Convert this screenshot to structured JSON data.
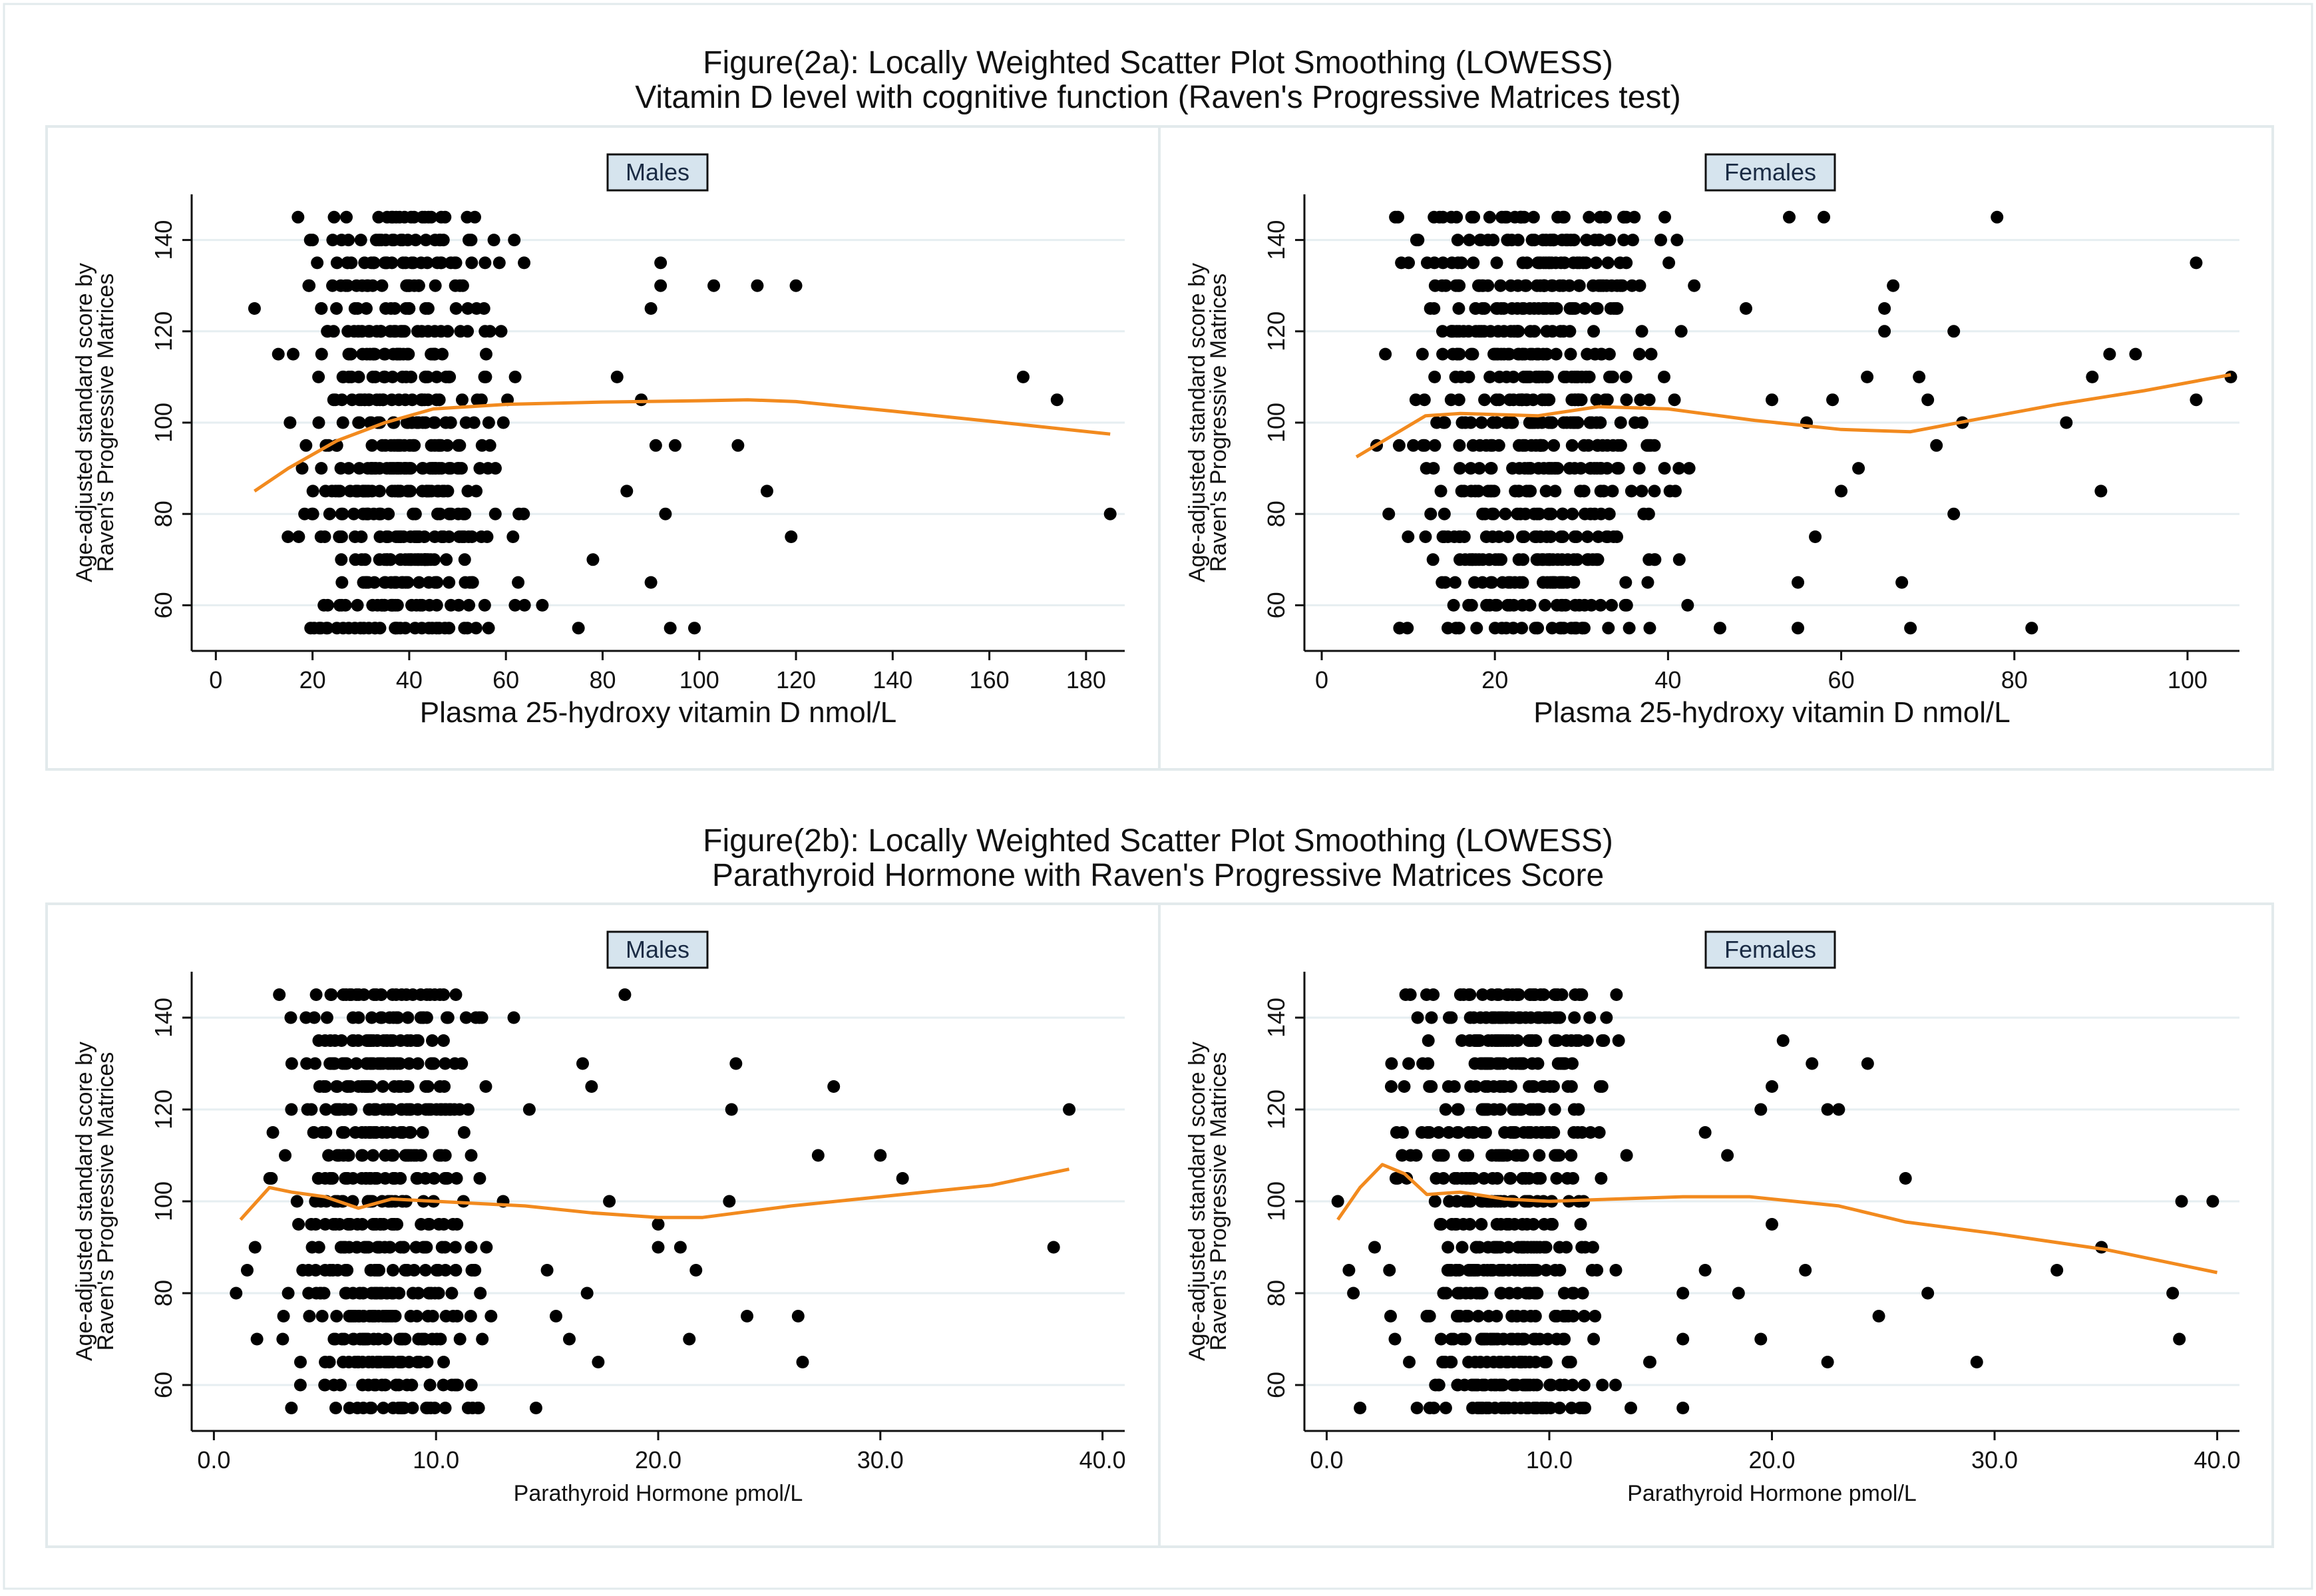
{
  "figures": [
    {
      "title_line1": "Figure(2a): Locally Weighted Scatter Plot Smoothing (LOWESS)",
      "title_line2": "Vitamin D level with cognitive function (Raven's Progressive Matrices test)"
    },
    {
      "title_line1": "Figure(2b): Locally Weighted Scatter Plot Smoothing (LOWESS)",
      "title_line2": "Parathyroid Hormone with Raven's Progressive Matrices Score"
    }
  ],
  "colors": {
    "points": "#000000",
    "lowess": "#f28a1e",
    "grid": "#e6eef1",
    "badge_bg": "#d6e4ee",
    "panel_border": "#e2eaec"
  },
  "chart_data": [
    {
      "type": "scatter",
      "panel": "Males",
      "figure": "2a",
      "xlabel": "Plasma 25-hydroxy vitamin D nmol/L",
      "ylabel": [
        "Age-adjusted standard score by",
        "Raven's Progressive Matrices"
      ],
      "xlim": [
        -5,
        188
      ],
      "ylim": [
        50,
        150
      ],
      "xticks": [
        0,
        20,
        40,
        60,
        80,
        100,
        120,
        140,
        160,
        180
      ],
      "xtick_labels": [
        "0",
        "20",
        "40",
        "60",
        "80",
        "100",
        "120",
        "140",
        "160",
        "180"
      ],
      "yticks": [
        60,
        80,
        100,
        120,
        140
      ],
      "ytick_labels": [
        "60",
        "80",
        "100",
        "120",
        "140"
      ],
      "grid": true,
      "lowess": [
        [
          8,
          85
        ],
        [
          15,
          90
        ],
        [
          25,
          96
        ],
        [
          35,
          100
        ],
        [
          45,
          103
        ],
        [
          60,
          104
        ],
        [
          80,
          104.5
        ],
        [
          100,
          104.8
        ],
        [
          110,
          105
        ],
        [
          120,
          104.6
        ],
        [
          140,
          102.5
        ],
        [
          160,
          100.3
        ],
        [
          185,
          97.5
        ]
      ],
      "outliers": [
        [
          8,
          125
        ],
        [
          17,
          145
        ],
        [
          20,
          140
        ],
        [
          92,
          135
        ],
        [
          92,
          130
        ],
        [
          103,
          130
        ],
        [
          112,
          130
        ],
        [
          120,
          130
        ],
        [
          90,
          125
        ],
        [
          88,
          105
        ],
        [
          91,
          95
        ],
        [
          95,
          95
        ],
        [
          108,
          95
        ],
        [
          114,
          85
        ],
        [
          119,
          75
        ],
        [
          93,
          80
        ],
        [
          90,
          65
        ],
        [
          94,
          55
        ],
        [
          167,
          110
        ],
        [
          174,
          105
        ],
        [
          185,
          80
        ],
        [
          99,
          55
        ],
        [
          78,
          70
        ],
        [
          85,
          85
        ],
        [
          75,
          55
        ],
        [
          83,
          110
        ]
      ],
      "cluster": {
        "x_range": [
          10,
          68
        ],
        "y_values": [
          55,
          60,
          65,
          70,
          75,
          80,
          85,
          90,
          95,
          100,
          105,
          110,
          115,
          120,
          125,
          130,
          135,
          140,
          145
        ]
      },
      "n_cluster": 560
    },
    {
      "type": "scatter",
      "panel": "Females",
      "figure": "2a",
      "xlabel": "Plasma 25-hydroxy vitamin D nmol/L",
      "ylabel": [
        "Age-adjusted standard score by",
        "Raven's Progressive Matrices"
      ],
      "xlim": [
        -2,
        106
      ],
      "ylim": [
        50,
        150
      ],
      "xticks": [
        0,
        20,
        40,
        60,
        80,
        100
      ],
      "xtick_labels": [
        "0",
        "20",
        "40",
        "60",
        "80",
        "100"
      ],
      "yticks": [
        60,
        80,
        100,
        120,
        140
      ],
      "ytick_labels": [
        "60",
        "80",
        "100",
        "120",
        "140"
      ],
      "grid": true,
      "lowess": [
        [
          4,
          92.5
        ],
        [
          8,
          97
        ],
        [
          12,
          101.5
        ],
        [
          16,
          102
        ],
        [
          25,
          101.5
        ],
        [
          32,
          103.5
        ],
        [
          40,
          103
        ],
        [
          50,
          100.5
        ],
        [
          60,
          98.5
        ],
        [
          68,
          98
        ],
        [
          75,
          100.5
        ],
        [
          85,
          104
        ],
        [
          95,
          107
        ],
        [
          105,
          110.5
        ]
      ],
      "outliers": [
        [
          54,
          145
        ],
        [
          58,
          145
        ],
        [
          78,
          145
        ],
        [
          66,
          130
        ],
        [
          65,
          125
        ],
        [
          65,
          120
        ],
        [
          63,
          110
        ],
        [
          69,
          110
        ],
        [
          70,
          105
        ],
        [
          73,
          120
        ],
        [
          71,
          95
        ],
        [
          73,
          80
        ],
        [
          67,
          65
        ],
        [
          68,
          55
        ],
        [
          82,
          55
        ],
        [
          89,
          110
        ],
        [
          91,
          115
        ],
        [
          94,
          115
        ],
        [
          101,
          135
        ],
        [
          101,
          105
        ],
        [
          105,
          110
        ],
        [
          90,
          85
        ],
        [
          86,
          100
        ],
        [
          74,
          100
        ],
        [
          60,
          85
        ],
        [
          56,
          100
        ],
        [
          59,
          105
        ],
        [
          62,
          90
        ],
        [
          55,
          55
        ],
        [
          57,
          75
        ],
        [
          46,
          55
        ],
        [
          49,
          125
        ],
        [
          52,
          105
        ],
        [
          55,
          65
        ]
      ],
      "cluster": {
        "x_range": [
          4,
          46
        ],
        "y_values": [
          55,
          60,
          65,
          70,
          75,
          80,
          85,
          90,
          95,
          100,
          105,
          110,
          115,
          120,
          125,
          130,
          135,
          140,
          145
        ]
      },
      "n_cluster": 640
    },
    {
      "type": "scatter",
      "panel": "Males",
      "figure": "2b",
      "xlabel": "Parathyroid Hormone pmol/L",
      "ylabel": [
        "Age-adjusted standard score by",
        "Raven's Progressive Matrices"
      ],
      "xlim": [
        -1,
        41
      ],
      "ylim": [
        50,
        150
      ],
      "xticks": [
        0,
        10,
        20,
        30,
        40
      ],
      "xtick_labels": [
        "0.0",
        "10.0",
        "20.0",
        "30.0",
        "40.0"
      ],
      "yticks": [
        60,
        80,
        100,
        120,
        140
      ],
      "ytick_labels": [
        "60",
        "80",
        "100",
        "120",
        "140"
      ],
      "grid": true,
      "lowess": [
        [
          1.2,
          96
        ],
        [
          2.5,
          103
        ],
        [
          3.5,
          102
        ],
        [
          5,
          101
        ],
        [
          6.5,
          98.5
        ],
        [
          8,
          100.5
        ],
        [
          10,
          100
        ],
        [
          14,
          99
        ],
        [
          17,
          97.5
        ],
        [
          20,
          96.5
        ],
        [
          22,
          96.5
        ],
        [
          26,
          99
        ],
        [
          30,
          101
        ],
        [
          35,
          103.5
        ],
        [
          38.5,
          107
        ]
      ],
      "outliers": [
        [
          18.5,
          145
        ],
        [
          16.6,
          130
        ],
        [
          17,
          125
        ],
        [
          14.2,
          120
        ],
        [
          13.5,
          140
        ],
        [
          23.5,
          130
        ],
        [
          23.3,
          120
        ],
        [
          27.9,
          125
        ],
        [
          27.2,
          110
        ],
        [
          30,
          110
        ],
        [
          31,
          105
        ],
        [
          38.5,
          120
        ],
        [
          37.8,
          90
        ],
        [
          23.2,
          100
        ],
        [
          20,
          95
        ],
        [
          21,
          90
        ],
        [
          21.7,
          85
        ],
        [
          20,
          90
        ],
        [
          24,
          75
        ],
        [
          26.3,
          75
        ],
        [
          26.5,
          65
        ],
        [
          21.4,
          70
        ],
        [
          15,
          85
        ],
        [
          15.4,
          75
        ],
        [
          16,
          70
        ],
        [
          17.3,
          65
        ],
        [
          14.5,
          55
        ],
        [
          16.8,
          80
        ],
        [
          1,
          80
        ],
        [
          1.5,
          85
        ],
        [
          17.8,
          100
        ]
      ],
      "cluster": {
        "x_range": [
          1.8,
          13.5
        ],
        "y_values": [
          55,
          60,
          65,
          70,
          75,
          80,
          85,
          90,
          95,
          100,
          105,
          110,
          115,
          120,
          125,
          130,
          135,
          140,
          145
        ]
      },
      "n_cluster": 560
    },
    {
      "type": "scatter",
      "panel": "Females",
      "figure": "2b",
      "xlabel": "Parathyroid Hormone pmol/L",
      "ylabel": [
        "Age-adjusted standard score by",
        "Raven's Progressive Matrices"
      ],
      "xlim": [
        -1,
        41
      ],
      "ylim": [
        50,
        150
      ],
      "xticks": [
        0,
        10,
        20,
        30,
        40
      ],
      "xtick_labels": [
        "0.0",
        "10.0",
        "20.0",
        "30.0",
        "40.0"
      ],
      "yticks": [
        60,
        80,
        100,
        120,
        140
      ],
      "ytick_labels": [
        "60",
        "80",
        "100",
        "120",
        "140"
      ],
      "grid": true,
      "lowess": [
        [
          0.5,
          96
        ],
        [
          1.5,
          103
        ],
        [
          2.5,
          108
        ],
        [
          3.5,
          106
        ],
        [
          4.5,
          101.5
        ],
        [
          6,
          102
        ],
        [
          8,
          100.5
        ],
        [
          10,
          100
        ],
        [
          13,
          100.5
        ],
        [
          16,
          101
        ],
        [
          19,
          101
        ],
        [
          23,
          99
        ],
        [
          26,
          95.5
        ],
        [
          30,
          93
        ],
        [
          35,
          89.5
        ],
        [
          40,
          84.5
        ]
      ],
      "outliers": [
        [
          20.5,
          135
        ],
        [
          21.8,
          130
        ],
        [
          24.3,
          130
        ],
        [
          22.5,
          120
        ],
        [
          23,
          120
        ],
        [
          20,
          125
        ],
        [
          19.5,
          120
        ],
        [
          17,
          115
        ],
        [
          18,
          110
        ],
        [
          26,
          105
        ],
        [
          21.5,
          85
        ],
        [
          18.5,
          80
        ],
        [
          19.5,
          70
        ],
        [
          22.5,
          65
        ],
        [
          24.8,
          75
        ],
        [
          27,
          80
        ],
        [
          29.2,
          65
        ],
        [
          32.8,
          85
        ],
        [
          34.8,
          90
        ],
        [
          38.3,
          70
        ],
        [
          38,
          80
        ],
        [
          38.4,
          100
        ],
        [
          39.8,
          100
        ],
        [
          16,
          55
        ],
        [
          11.6,
          55
        ],
        [
          1.5,
          55
        ],
        [
          1.2,
          80
        ],
        [
          1,
          85
        ],
        [
          0.5,
          100
        ],
        [
          20,
          95
        ],
        [
          17,
          85
        ],
        [
          16,
          80
        ],
        [
          16,
          70
        ],
        [
          14.5,
          65
        ]
      ],
      "cluster": {
        "x_range": [
          2,
          14
        ],
        "y_values": [
          55,
          60,
          65,
          70,
          75,
          80,
          85,
          90,
          95,
          100,
          105,
          110,
          115,
          120,
          125,
          130,
          135,
          140,
          145
        ]
      },
      "n_cluster": 600
    }
  ]
}
